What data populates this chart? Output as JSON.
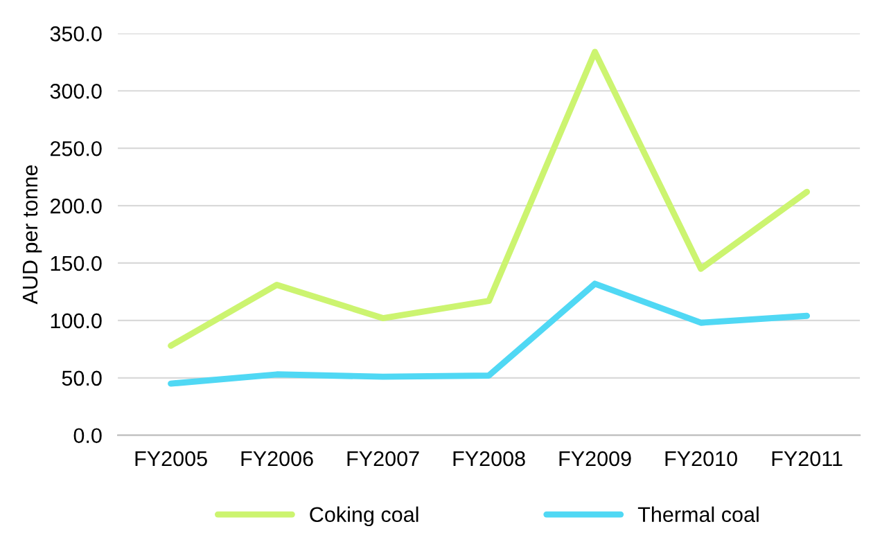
{
  "chart_data": {
    "type": "line",
    "ylabel": "AUD per tonne",
    "categories": [
      "FY2005",
      "FY2006",
      "FY2007",
      "FY2008",
      "FY2009",
      "FY2010",
      "FY2011"
    ],
    "series": [
      {
        "name": "Coking coal",
        "color": "#ccf470",
        "values": [
          78,
          131,
          102,
          117,
          334,
          145,
          212
        ]
      },
      {
        "name": "Thermal coal",
        "color": "#50d8f4",
        "values": [
          45,
          53,
          51,
          52,
          132,
          98,
          104
        ]
      }
    ],
    "ylim": [
      0,
      350
    ],
    "yticks": [
      {
        "value": 0,
        "label": "0.0"
      },
      {
        "value": 50,
        "label": "50.0"
      },
      {
        "value": 100,
        "label": "100.0"
      },
      {
        "value": 150,
        "label": "150.0"
      },
      {
        "value": 200,
        "label": "200.0"
      },
      {
        "value": 250,
        "label": "250.0"
      },
      {
        "value": 300,
        "label": "300.0"
      },
      {
        "value": 350,
        "label": "350.0"
      }
    ],
    "grid": "y",
    "legend": "bottom",
    "marker": "none",
    "line_style": "solid"
  }
}
